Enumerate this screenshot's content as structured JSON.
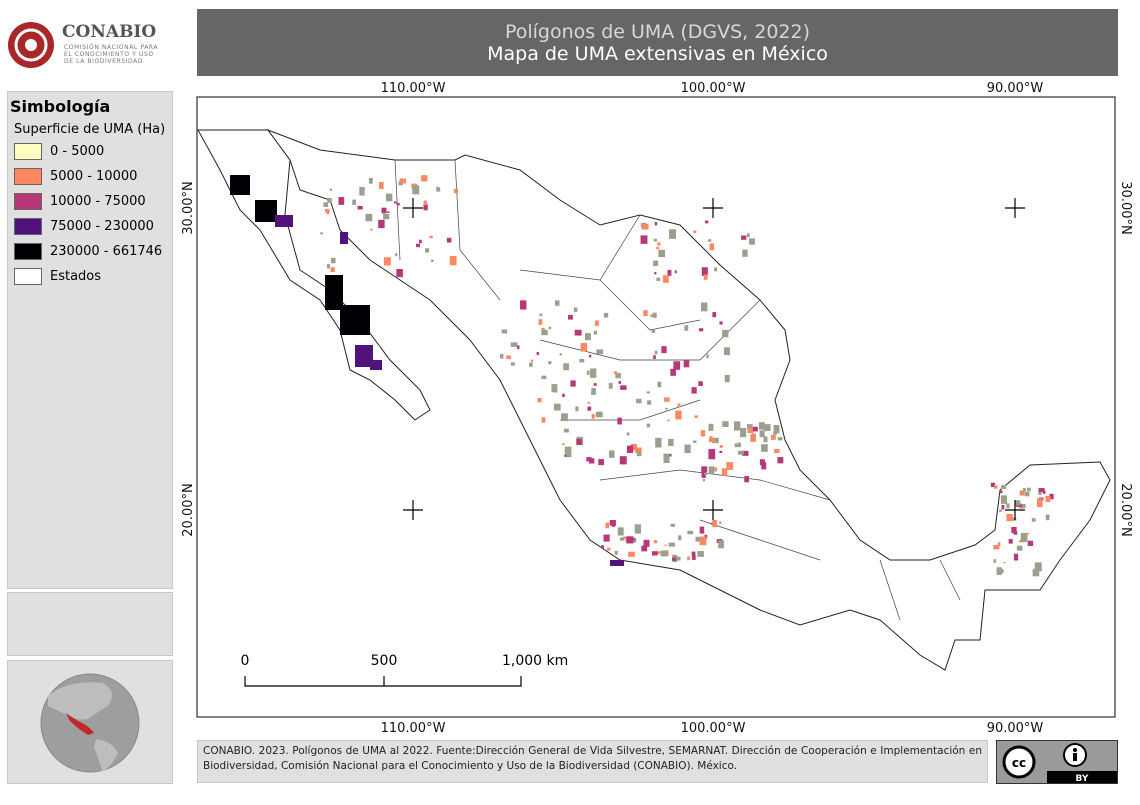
{
  "logo": {
    "name": "CONABIO",
    "subtitle_lines": [
      "COMISIÓN NACIONAL PARA",
      "EL CONOCIMIENTO Y USO",
      "DE LA BIODIVERSIDAD"
    ]
  },
  "header": {
    "title": "Polígonos de UMA (DGVS, 2022)",
    "subtitle": "Mapa de UMA extensivas en México"
  },
  "legend": {
    "title": "Simbología",
    "subtitle": "Superficie de UMA (Ha)",
    "items": [
      {
        "label": "0 - 5000",
        "color": "#fcfdbf"
      },
      {
        "label": "5000 - 10000",
        "color": "#fc8961"
      },
      {
        "label": "10000 - 75000",
        "color": "#b73779"
      },
      {
        "label": "75000 - 230000",
        "color": "#51127c"
      },
      {
        "label": "230000 - 661746",
        "color": "#000004"
      },
      {
        "label": "Estados",
        "color": "#ffffff"
      }
    ]
  },
  "map": {
    "lon_labels": [
      "110.00°W",
      "100.00°W",
      "90.00°W"
    ],
    "lat_labels": [
      "30.00°N",
      "20.00°N"
    ],
    "scale_labels": [
      "0",
      "500",
      "1,000 km"
    ]
  },
  "footer": {
    "credit": "CONABIO. 2023. Polígonos de UMA al 2022. Fuente:Dirección General de Vida Silvestre, SEMARNAT. Dirección de Cooperación e Implementación en Biodiversidad, Comisión Nacional para el Conocimiento y Uso de la Biodiversidad (CONABIO). México.",
    "license": "BY"
  }
}
